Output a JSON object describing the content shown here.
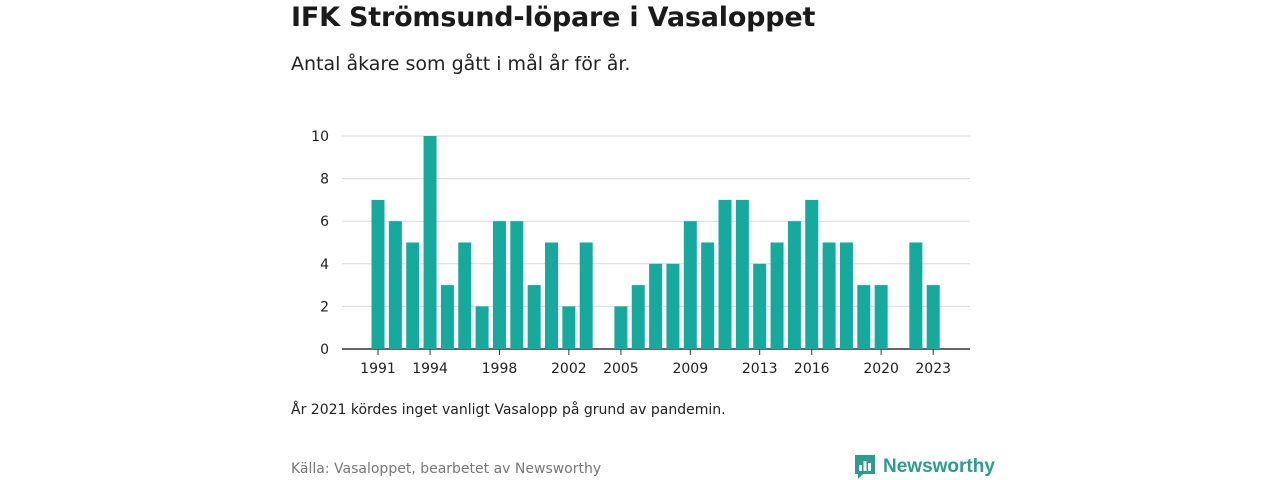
{
  "title": "IFK Strömsund-löpare i Vasaloppet",
  "subtitle": "Antal åkare som gått i mål år för år.",
  "note": "År 2021 kördes inget vanligt Vasalopp på grund av pandemin.",
  "source": "Källa: Vasaloppet, bearbetet av Newsworthy",
  "brand": {
    "name": "Newsworthy",
    "icon": "newsworthy-logo-icon",
    "color": "#2a9d8f"
  },
  "chart_data": {
    "type": "bar",
    "title": "",
    "xlabel": "",
    "ylabel": "",
    "ylim": [
      0,
      10
    ],
    "yticks": [
      0,
      2,
      4,
      6,
      8,
      10
    ],
    "xticks": [
      "1991",
      "1994",
      "1998",
      "2002",
      "2005",
      "2009",
      "2013",
      "2016",
      "2020",
      "2023"
    ],
    "grid": true,
    "bar_color": "#16a99d",
    "categories": [
      "1991",
      "1992",
      "1993",
      "1994",
      "1995",
      "1996",
      "1997",
      "1998",
      "1999",
      "2000",
      "2001",
      "2002",
      "2003",
      "2004",
      "2005",
      "2006",
      "2007",
      "2008",
      "2009",
      "2010",
      "2011",
      "2012",
      "2013",
      "2014",
      "2015",
      "2016",
      "2017",
      "2018",
      "2019",
      "2020",
      "2021",
      "2022",
      "2023"
    ],
    "values": [
      7,
      6,
      5,
      10,
      3,
      5,
      2,
      6,
      6,
      3,
      5,
      2,
      5,
      0,
      2,
      3,
      4,
      4,
      6,
      5,
      7,
      7,
      4,
      5,
      6,
      7,
      5,
      5,
      3,
      3,
      0,
      5,
      3
    ]
  }
}
